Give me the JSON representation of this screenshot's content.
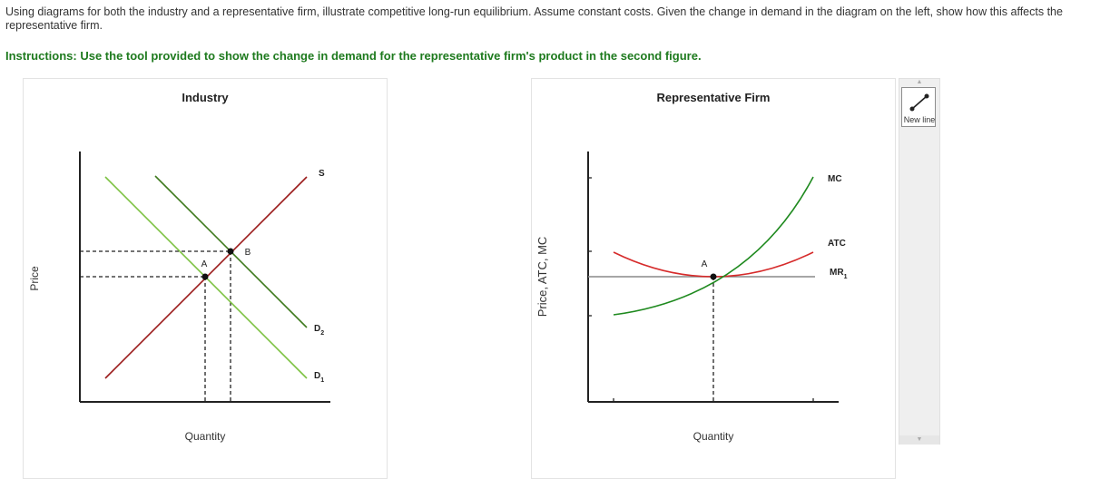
{
  "question": "Using diagrams for both the industry and a representative firm, illustrate competitive long-run equilibrium.  Assume constant costs. Given the change in demand in the diagram on the left, show how this affects the representative firm.",
  "instructions": "Instructions: Use the tool provided to show the change in demand for the representative firm's product in the second figure.",
  "industry": {
    "title": "Industry",
    "ylabel": "Price",
    "xlabel": "Quantity",
    "supply_label": "S",
    "demand2_label": "D",
    "demand2_sub": "2",
    "demand1_label": "D",
    "demand1_sub": "1",
    "point_a": "A",
    "point_b": "B"
  },
  "firm": {
    "title": "Representative Firm",
    "ylabel": "Price, ATC, MC",
    "xlabel": "Quantity",
    "mc_label": "MC",
    "atc_label": "ATC",
    "mr_label": "MR",
    "mr_sub": "1",
    "point_a": "A"
  },
  "toolbar": {
    "new_line_label": "New line"
  },
  "colors": {
    "supply": "#9b1b1b",
    "demand1": "#7dc242",
    "demand2": "#3f7a1e",
    "mc": "#1f8a1f",
    "atc": "#d62b2b",
    "mr": "#888888",
    "instructions": "#1e7a1e"
  }
}
